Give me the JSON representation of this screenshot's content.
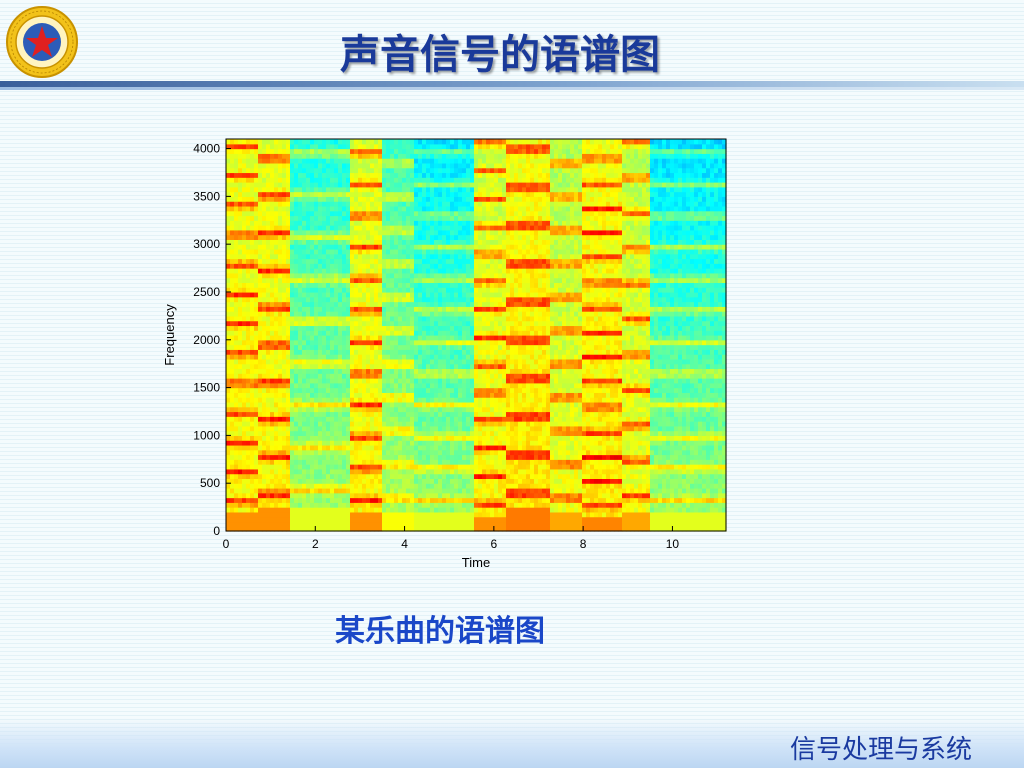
{
  "slide": {
    "title": "声音信号的语谱图",
    "caption": "某乐曲的语谱图",
    "footer": "信号处理与系统",
    "logo_icon": "university-emblem-icon"
  },
  "colors": {
    "title": "#1a3a9a",
    "caption": "#1a47c8",
    "footer": "#1a3aa0",
    "colormap": [
      "#00008f",
      "#0050ff",
      "#00d0ff",
      "#80ff80",
      "#ffff00",
      "#ff9000",
      "#ff2000",
      "#8f0000"
    ]
  },
  "chart_data": {
    "type": "heatmap",
    "xlabel": "Time",
    "ylabel": "Frequency",
    "xlim": [
      0,
      11.2
    ],
    "ylim": [
      0,
      4100
    ],
    "xticks": [
      0,
      2,
      4,
      6,
      8,
      10
    ],
    "yticks": [
      0,
      500,
      1000,
      1500,
      2000,
      2500,
      3000,
      3500,
      4000
    ],
    "colormap": "jet",
    "segments": [
      {
        "start": 0.0,
        "end": 0.7,
        "fundamental": 310,
        "intensity": 0.85,
        "rolloff": 0.05
      },
      {
        "start": 0.7,
        "end": 1.4,
        "fundamental": 390,
        "intensity": 0.85,
        "rolloff": 0.06
      },
      {
        "start": 1.4,
        "end": 2.8,
        "fundamental": 440,
        "intensity": 0.55,
        "rolloff": 0.22
      },
      {
        "start": 2.8,
        "end": 3.5,
        "fundamental": 330,
        "intensity": 0.85,
        "rolloff": 0.08
      },
      {
        "start": 3.5,
        "end": 4.2,
        "fundamental": 350,
        "intensity": 0.6,
        "rolloff": 0.2
      },
      {
        "start": 4.2,
        "end": 5.6,
        "fundamental": 330,
        "intensity": 0.55,
        "rolloff": 0.3
      },
      {
        "start": 5.6,
        "end": 6.3,
        "fundamental": 290,
        "intensity": 0.85,
        "rolloff": 0.1
      },
      {
        "start": 6.3,
        "end": 7.3,
        "fundamental": 400,
        "intensity": 0.9,
        "rolloff": 0.06
      },
      {
        "start": 7.3,
        "end": 8.0,
        "fundamental": 350,
        "intensity": 0.8,
        "rolloff": 0.12
      },
      {
        "start": 8.0,
        "end": 8.9,
        "fundamental": 260,
        "intensity": 0.88,
        "rolloff": 0.05
      },
      {
        "start": 8.9,
        "end": 9.5,
        "fundamental": 370,
        "intensity": 0.8,
        "rolloff": 0.1
      },
      {
        "start": 9.5,
        "end": 11.2,
        "fundamental": 330,
        "intensity": 0.55,
        "rolloff": 0.32
      }
    ]
  }
}
